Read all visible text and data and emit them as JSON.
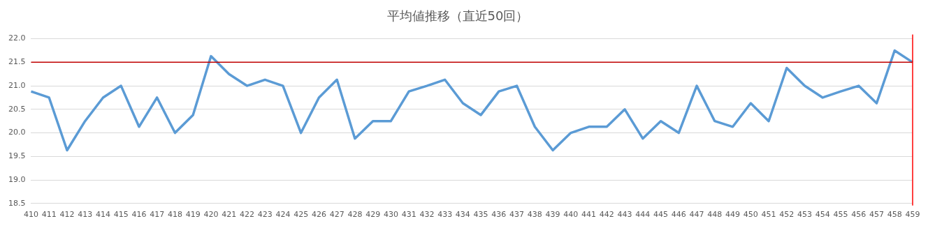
{
  "chart_data": {
    "type": "line",
    "title": "平均値推移（直近50回）",
    "categories": [
      "410",
      "411",
      "412",
      "413",
      "414",
      "415",
      "416",
      "417",
      "418",
      "419",
      "420",
      "421",
      "422",
      "423",
      "424",
      "425",
      "426",
      "427",
      "428",
      "429",
      "430",
      "431",
      "432",
      "433",
      "434",
      "435",
      "436",
      "437",
      "438",
      "439",
      "440",
      "441",
      "442",
      "443",
      "444",
      "445",
      "446",
      "447",
      "448",
      "449",
      "450",
      "451",
      "452",
      "453",
      "454",
      "455",
      "456",
      "457",
      "458",
      "459"
    ],
    "series": [
      {
        "color": "#5b9bd5",
        "values": [
          20.88,
          20.75,
          19.63,
          20.25,
          20.75,
          21.0,
          20.13,
          20.75,
          20.0,
          20.38,
          21.63,
          21.25,
          21.0,
          21.13,
          21.0,
          20.0,
          20.75,
          21.13,
          19.88,
          20.25,
          20.25,
          20.88,
          21.0,
          21.13,
          20.63,
          20.38,
          20.88,
          21.0,
          20.13,
          19.63,
          20.0,
          20.13,
          20.13,
          20.5,
          19.88,
          20.25,
          20.0,
          21.0,
          20.25,
          20.13,
          20.63,
          20.25,
          21.38,
          21.0,
          20.75,
          20.88,
          21.0,
          20.63,
          21.75,
          21.5
        ]
      }
    ],
    "ylim": [
      18.5,
      22.0
    ],
    "yticks": [
      {
        "value": 18.5,
        "label": "18.5"
      },
      {
        "value": 19,
        "label": "19.0"
      },
      {
        "value": 19.5,
        "label": "19.5"
      },
      {
        "value": 20,
        "label": "20.0"
      },
      {
        "value": 20.5,
        "label": "20.5"
      },
      {
        "value": 21,
        "label": "21.0"
      },
      {
        "value": 21.5,
        "label": "21.5"
      },
      {
        "value": 22,
        "label": "22.0"
      }
    ],
    "grid": "y",
    "legend": false,
    "marker": "none",
    "line_style": "solid",
    "ref_lines": [
      {
        "axis": "y",
        "value": 21.5,
        "color": "#c00000"
      },
      {
        "axis": "x",
        "value": "459",
        "color": "#ff0000"
      }
    ]
  }
}
